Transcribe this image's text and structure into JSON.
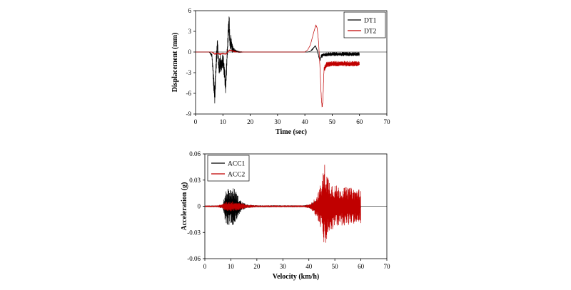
{
  "chart_data": [
    {
      "type": "line",
      "title": "",
      "xlabel": "Time (sec)",
      "ylabel": "Displacement (mm)",
      "xlim": [
        0,
        70
      ],
      "ylim": [
        -9,
        6
      ],
      "xticks": [
        0,
        10,
        20,
        30,
        40,
        50,
        60,
        70
      ],
      "yticks": [
        -9,
        -6,
        -3,
        0,
        3,
        6
      ],
      "grid": false,
      "legend": "top-right",
      "series": [
        {
          "name": "DT1",
          "color": "#000000",
          "x": [
            0,
            5,
            6,
            6.6,
            7,
            7.5,
            8,
            8.6,
            9,
            9.5,
            10,
            10.5,
            11,
            11.5,
            12,
            12.3,
            12.6,
            13,
            13.5,
            14,
            15,
            16,
            18,
            20,
            25,
            30,
            35,
            40,
            41,
            42,
            43,
            43.8,
            44.5,
            45,
            45.5,
            46,
            47,
            50,
            55,
            60
          ],
          "y": [
            0,
            0,
            -0.5,
            -4,
            -6.3,
            -2,
            1.1,
            -2.5,
            -1.5,
            -2,
            -1.2,
            -2.5,
            -5,
            -1,
            3,
            4.3,
            1,
            1.5,
            0.5,
            0.3,
            0.1,
            0,
            0,
            0,
            0,
            0,
            0,
            0,
            0,
            0.1,
            0.5,
            0.9,
            0.3,
            -0.5,
            -1.2,
            -0.6,
            -0.4,
            -0.3,
            -0.3,
            -0.3
          ],
          "band": [
            0,
            0,
            0.3,
            1.5,
            1.5,
            1.5,
            1.2,
            1.2,
            1.2,
            1.2,
            1.2,
            1.2,
            1.2,
            1.5,
            1.5,
            1.5,
            1.2,
            1,
            0.6,
            0.3,
            0.15,
            0.05,
            0,
            0,
            0,
            0,
            0,
            0,
            0,
            0,
            0.1,
            0.1,
            0.2,
            0.2,
            0.2,
            0.3,
            0.3,
            0.3,
            0.3,
            0.3
          ]
        },
        {
          "name": "DT2",
          "color": "#c00000",
          "x": [
            0,
            5,
            6,
            7,
            8,
            9,
            10,
            11,
            12,
            12.5,
            13,
            14,
            15,
            20,
            30,
            40,
            41,
            42,
            43,
            44,
            44.5,
            45,
            45.5,
            46,
            46.3,
            46.6,
            47,
            48,
            50,
            55,
            60
          ],
          "y": [
            0,
            0,
            0,
            -0.3,
            -0.2,
            -0.3,
            -0.2,
            -0.3,
            0.1,
            0.3,
            0.2,
            0.1,
            0,
            0,
            0,
            0,
            0.3,
            1,
            2.5,
            3.9,
            3.5,
            1.5,
            -2,
            -6.5,
            -8,
            -7,
            -2.5,
            -1.8,
            -1.7,
            -1.7,
            -1.7
          ],
          "band": [
            0,
            0,
            0,
            0.1,
            0.1,
            0.1,
            0.1,
            0.1,
            0.1,
            0.1,
            0.1,
            0.1,
            0,
            0,
            0,
            0,
            0,
            0,
            0.05,
            0.05,
            0.05,
            0.1,
            0.1,
            0.2,
            0.2,
            0.3,
            0.4,
            0.4,
            0.4,
            0.4,
            0.4
          ]
        }
      ]
    },
    {
      "type": "line",
      "title": "",
      "xlabel": "Velocity (km/h)",
      "ylabel": "Acceleration (g)",
      "xlim": [
        0,
        70
      ],
      "ylim": [
        -0.06,
        0.06
      ],
      "xticks": [
        0,
        10,
        20,
        30,
        40,
        50,
        60,
        70
      ],
      "yticks": [
        -0.06,
        -0.03,
        0,
        0.03,
        0.06
      ],
      "ytick_labels": [
        "-0.06",
        "-0.03",
        "0",
        "0.03",
        "0.06"
      ],
      "grid": false,
      "legend": "top-left",
      "series": [
        {
          "name": "ACC1",
          "color": "#000000",
          "x": [
            0,
            5,
            7,
            8,
            9,
            10,
            11,
            12,
            13,
            14,
            15,
            16,
            20,
            30,
            38,
            40,
            41,
            42,
            43,
            44,
            45,
            50,
            55,
            60
          ],
          "y": [
            0,
            0,
            0,
            0,
            0,
            0,
            0,
            0,
            0,
            0,
            0,
            0,
            0,
            0,
            0,
            0,
            0,
            0,
            0,
            0,
            0,
            0,
            0,
            0
          ],
          "band": [
            0.0008,
            0.0008,
            0.002,
            0.02,
            0.022,
            0.02,
            0.022,
            0.018,
            0.01,
            0.006,
            0.004,
            0.002,
            0.001,
            0.001,
            0.001,
            0.002,
            0.004,
            0.005,
            0.007,
            0.005,
            0.004,
            0.004,
            0.004,
            0.004
          ]
        },
        {
          "name": "ACC2",
          "color": "#c00000",
          "x": [
            0,
            5,
            7,
            8,
            10,
            12,
            14,
            16,
            20,
            30,
            38,
            40,
            41,
            42,
            43,
            44,
            45,
            46,
            47,
            48,
            50,
            52,
            55,
            58,
            60
          ],
          "y": [
            0,
            0,
            0,
            0,
            0,
            0,
            0,
            0,
            0,
            0,
            0,
            0,
            0,
            0,
            0,
            0,
            0,
            0,
            0,
            0,
            0,
            0,
            0,
            0,
            0
          ],
          "band": [
            0.0008,
            0.001,
            0.003,
            0.005,
            0.006,
            0.005,
            0.004,
            0.002,
            0.001,
            0.001,
            0.001,
            0.002,
            0.004,
            0.008,
            0.012,
            0.02,
            0.03,
            0.05,
            0.04,
            0.03,
            0.025,
            0.022,
            0.022,
            0.02,
            0.02
          ]
        }
      ]
    }
  ]
}
